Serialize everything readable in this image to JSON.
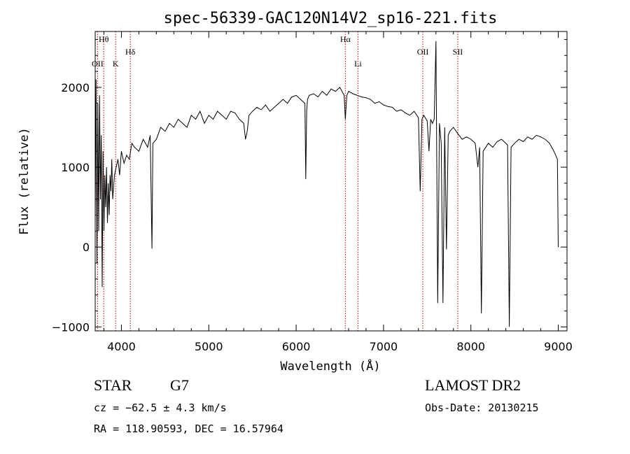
{
  "chart_data": {
    "type": "line",
    "title": "spec-56339-GAC120N14V2_sp16-221.fits",
    "xlabel": "Wavelength (Å)",
    "ylabel": "Flux (relative)",
    "xlim": [
      3700,
      9100
    ],
    "ylim": [
      -1050,
      2700
    ],
    "xticks": [
      4000,
      5000,
      6000,
      7000,
      8000,
      9000
    ],
    "yticks": [
      -1000,
      0,
      1000,
      2000
    ],
    "grid": false,
    "line_color": "#000000",
    "marker_color": "#cc0000",
    "lines": [
      {
        "label": "Hθ",
        "x": 3798,
        "row": 0
      },
      {
        "label": "OII",
        "x": 3727,
        "row": 2
      },
      {
        "label": "K",
        "x": 3934,
        "row": 2
      },
      {
        "label": "Hδ",
        "x": 4102,
        "row": 1
      },
      {
        "label": "Hα",
        "x": 6563,
        "row": 0
      },
      {
        "label": "Li",
        "x": 6708,
        "row": 2
      },
      {
        "label": "OII",
        "x": 7450,
        "row": 1
      },
      {
        "label": "SII",
        "x": 7850,
        "row": 1
      }
    ],
    "series": [
      {
        "x": [
          3700,
          3710,
          3720,
          3730,
          3740,
          3750,
          3760,
          3770,
          3780,
          3790,
          3800,
          3810,
          3820,
          3830,
          3840,
          3850,
          3860,
          3870,
          3880,
          3890,
          3900,
          3920,
          3940,
          3960,
          3980,
          4000,
          4030,
          4060,
          4090,
          4120,
          4150,
          4200,
          4250,
          4300,
          4330,
          4350,
          4360,
          4400,
          4450,
          4500,
          4550,
          4600,
          4650,
          4700,
          4750,
          4800,
          4850,
          4900,
          4950,
          5000,
          5050,
          5100,
          5150,
          5200,
          5250,
          5300,
          5350,
          5400,
          5420,
          5440,
          5460,
          5500,
          5550,
          5600,
          5650,
          5700,
          5750,
          5800,
          5850,
          5900,
          5950,
          6000,
          6050,
          6100,
          6110,
          6120,
          6130,
          6150,
          6200,
          6250,
          6300,
          6350,
          6400,
          6450,
          6500,
          6550,
          6563,
          6580,
          6600,
          6650,
          6700,
          6750,
          6800,
          6850,
          6900,
          6950,
          7000,
          7050,
          7100,
          7150,
          7200,
          7250,
          7300,
          7350,
          7400,
          7420,
          7440,
          7460,
          7500,
          7520,
          7540,
          7560,
          7580,
          7600,
          7620,
          7640,
          7660,
          7680,
          7700,
          7720,
          7740,
          7760,
          7800,
          7850,
          7900,
          7950,
          8000,
          8050,
          8080,
          8100,
          8120,
          8140,
          8200,
          8250,
          8300,
          8350,
          8400,
          8420,
          8440,
          8460,
          8500,
          8550,
          8600,
          8650,
          8700,
          8750,
          8800,
          8850,
          8900,
          8950,
          8990,
          9000
        ],
        "values": [
          300,
          2100,
          -200,
          1800,
          200,
          1900,
          600,
          1400,
          -500,
          1200,
          200,
          900,
          500,
          1000,
          300,
          800,
          400,
          900,
          700,
          1100,
          600,
          900,
          1000,
          1100,
          900,
          1200,
          1050,
          1150,
          1100,
          1300,
          1250,
          1200,
          1350,
          1250,
          1400,
          -20,
          1300,
          1350,
          1500,
          1450,
          1550,
          1500,
          1600,
          1550,
          1500,
          1650,
          1600,
          1700,
          1550,
          1650,
          1600,
          1700,
          1650,
          1600,
          1700,
          1680,
          1600,
          1550,
          1350,
          1450,
          1650,
          1700,
          1750,
          1720,
          1780,
          1700,
          1750,
          1800,
          1850,
          1800,
          1880,
          1900,
          1850,
          1800,
          850,
          1700,
          1850,
          1900,
          1920,
          1880,
          1950,
          1900,
          1980,
          1950,
          2000,
          1900,
          1600,
          1900,
          1950,
          1920,
          1900,
          1880,
          1870,
          1850,
          1800,
          1820,
          1780,
          1760,
          1750,
          1700,
          1720,
          1680,
          1650,
          1700,
          1620,
          700,
          1600,
          1650,
          1580,
          1200,
          1600,
          1550,
          1600,
          2580,
          -700,
          1550,
          1300,
          -700,
          1500,
          -30,
          1400,
          1450,
          1500,
          1420,
          1350,
          1380,
          1350,
          1300,
          1000,
          1250,
          -830,
          1200,
          1300,
          1250,
          1320,
          1350,
          1300,
          1280,
          -1000,
          1250,
          1300,
          1350,
          1320,
          1380,
          1350,
          1400,
          1380,
          1350,
          1300,
          1200,
          1100,
          0
        ]
      }
    ],
    "annotations": {
      "object_class": "STAR",
      "subclass": "G7",
      "cz": "cz = −62.5 ± 4.3 km/s",
      "coords": "RA = 118.90593, DEC =  16.57964",
      "survey": "LAMOST DR2",
      "obs_date": "Obs-Date: 20130215"
    }
  }
}
